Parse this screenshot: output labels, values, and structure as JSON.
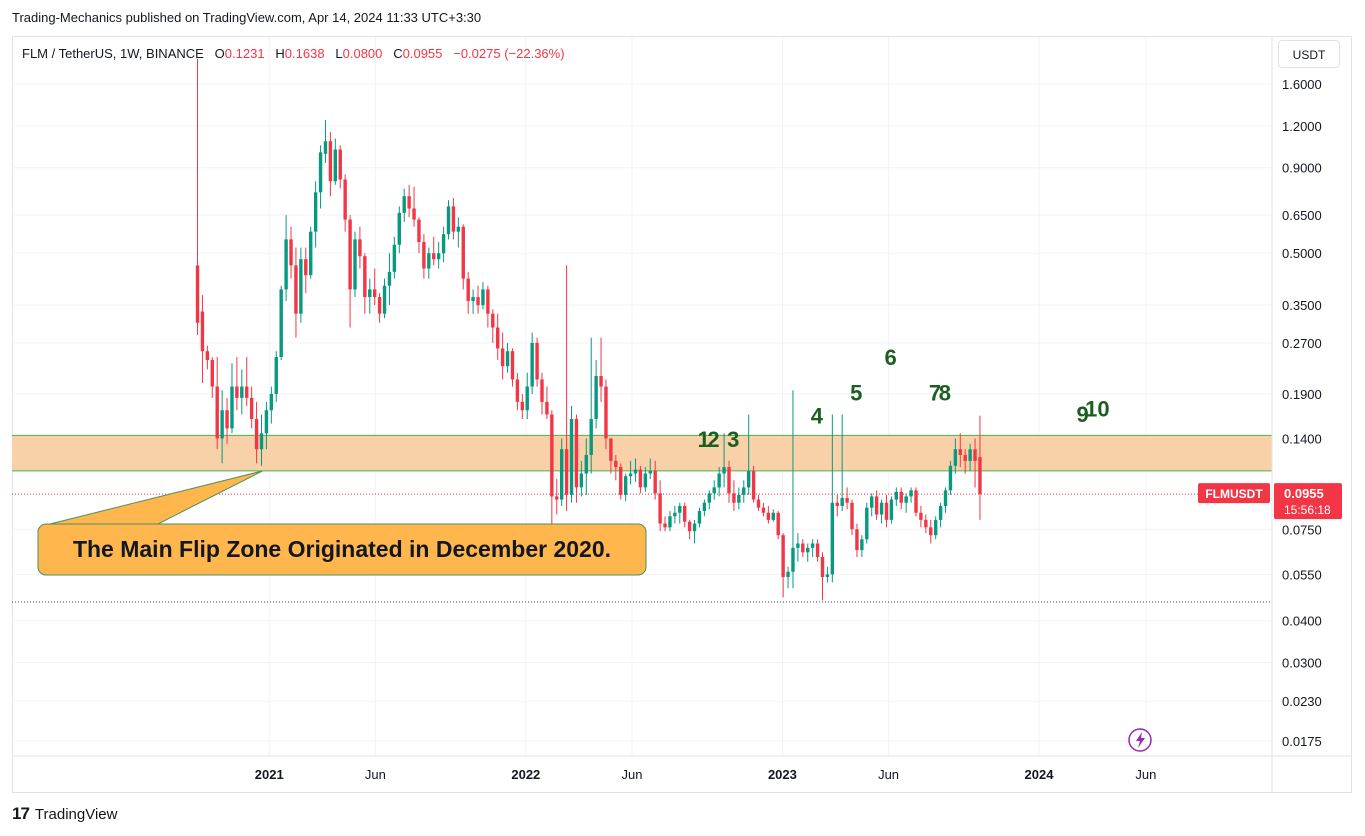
{
  "publication": "Trading-Mechanics published on TradingView.com, Apr 14, 2024 11:33 UTC+3:30",
  "legend": {
    "symbol": "FLM / TetherUS, 1W, BINANCE",
    "o_label": "O",
    "o": "0.1231",
    "h_label": "H",
    "h": "0.1638",
    "l_label": "L",
    "l": "0.0800",
    "c_label": "C",
    "c": "0.0955",
    "change": "−0.0275 (−22.36%)"
  },
  "currency_button": "USDT",
  "footer": {
    "logo": "17",
    "brand": "TradingView"
  },
  "colors": {
    "up": "#089981",
    "down": "#f23645",
    "zone_fill": "#f8cfa3",
    "zone_border": "#4caf50",
    "callout_fill": "#ffb74d",
    "callout_border": "#4c8f62",
    "count_label": "#1b5e20",
    "price_tag": "#f23645"
  },
  "chart_data": {
    "type": "candlestick",
    "scale": "log",
    "symbol": "FLMUSDT",
    "interval": "1W",
    "exchange": "BINANCE",
    "ylim": [
      0.0155,
      2.0
    ],
    "y_ticks": [
      "1.6000",
      "1.2000",
      "0.9000",
      "0.6500",
      "0.5000",
      "0.3500",
      "0.2700",
      "0.1900",
      "0.1400",
      "0.0750",
      "0.0550",
      "0.0400",
      "0.0300",
      "0.0230",
      "0.0175"
    ],
    "x_ticks": [
      {
        "label": "2021",
        "date": "2021-01-01",
        "bold": true
      },
      {
        "label": "Jun",
        "date": "2021-06-01",
        "bold": false
      },
      {
        "label": "2022",
        "date": "2022-01-01",
        "bold": true
      },
      {
        "label": "Jun",
        "date": "2022-06-01",
        "bold": false
      },
      {
        "label": "2023",
        "date": "2023-01-01",
        "bold": true
      },
      {
        "label": "Jun",
        "date": "2023-06-01",
        "bold": false
      },
      {
        "label": "2024",
        "date": "2024-01-01",
        "bold": true
      },
      {
        "label": "Jun",
        "date": "2024-06-01",
        "bold": false
      }
    ],
    "x_range": [
      "2020-08-10",
      "2024-10-20"
    ],
    "first_candle": "2020-09-21",
    "candle_interval_days": 7,
    "last_price": {
      "label": "FLMUSDT",
      "value": "0.0955",
      "countdown": "15:56:18"
    },
    "hlines": [
      0.0955,
      0.0455
    ],
    "zone": {
      "low": 0.112,
      "high": 0.143
    },
    "callout": {
      "text": "The Main Flip Zone Originated in December 2020.",
      "date": "2020-12-14",
      "price": 0.112
    },
    "counts": [
      {
        "label": "1",
        "date": "2022-09-11",
        "price": 0.132
      },
      {
        "label": "2",
        "date": "2022-09-25",
        "price": 0.132
      },
      {
        "label": "3",
        "date": "2022-10-23",
        "price": 0.132
      },
      {
        "label": "4",
        "date": "2023-02-19",
        "price": 0.155
      },
      {
        "label": "5",
        "date": "2023-04-16",
        "price": 0.182
      },
      {
        "label": "6",
        "date": "2023-06-04",
        "price": 0.232
      },
      {
        "label": "7",
        "date": "2023-08-06",
        "price": 0.182
      },
      {
        "label": "8",
        "date": "2023-08-20",
        "price": 0.182
      },
      {
        "label": "9",
        "date": "2024-03-03",
        "price": 0.157
      },
      {
        "label": "10",
        "date": "2024-03-24",
        "price": 0.163
      }
    ],
    "candles": [
      [
        0.46,
        1.9,
        0.285,
        0.31
      ],
      [
        0.335,
        0.375,
        0.205,
        0.255
      ],
      [
        0.255,
        0.265,
        0.225,
        0.24
      ],
      [
        0.24,
        0.245,
        0.185,
        0.2
      ],
      [
        0.2,
        0.245,
        0.13,
        0.14
      ],
      [
        0.14,
        0.195,
        0.118,
        0.17
      ],
      [
        0.17,
        0.185,
        0.135,
        0.15
      ],
      [
        0.15,
        0.235,
        0.145,
        0.2
      ],
      [
        0.2,
        0.245,
        0.17,
        0.185
      ],
      [
        0.185,
        0.225,
        0.165,
        0.2
      ],
      [
        0.2,
        0.245,
        0.175,
        0.185
      ],
      [
        0.185,
        0.2,
        0.15,
        0.16
      ],
      [
        0.16,
        0.18,
        0.118,
        0.13
      ],
      [
        0.13,
        0.165,
        0.116,
        0.145
      ],
      [
        0.145,
        0.18,
        0.13,
        0.17
      ],
      [
        0.17,
        0.2,
        0.155,
        0.19
      ],
      [
        0.19,
        0.255,
        0.18,
        0.245
      ],
      [
        0.245,
        0.4,
        0.24,
        0.39
      ],
      [
        0.39,
        0.65,
        0.36,
        0.55
      ],
      [
        0.55,
        0.6,
        0.42,
        0.46
      ],
      [
        0.46,
        0.52,
        0.28,
        0.33
      ],
      [
        0.33,
        0.52,
        0.31,
        0.48
      ],
      [
        0.48,
        0.52,
        0.38,
        0.43
      ],
      [
        0.43,
        0.6,
        0.42,
        0.58
      ],
      [
        0.58,
        0.82,
        0.52,
        0.76
      ],
      [
        0.76,
        1.05,
        0.68,
        1.0
      ],
      [
        0.99,
        1.25,
        0.93,
        1.08
      ],
      [
        1.08,
        1.15,
        0.74,
        0.82
      ],
      [
        0.82,
        1.1,
        0.8,
        1.02
      ],
      [
        1.02,
        1.05,
        0.78,
        0.83
      ],
      [
        0.83,
        0.86,
        0.58,
        0.63
      ],
      [
        0.63,
        0.65,
        0.3,
        0.39
      ],
      [
        0.39,
        0.58,
        0.37,
        0.55
      ],
      [
        0.55,
        0.6,
        0.45,
        0.49
      ],
      [
        0.49,
        0.5,
        0.33,
        0.37
      ],
      [
        0.37,
        0.42,
        0.33,
        0.39
      ],
      [
        0.39,
        0.45,
        0.35,
        0.37
      ],
      [
        0.37,
        0.38,
        0.31,
        0.33
      ],
      [
        0.33,
        0.42,
        0.32,
        0.4
      ],
      [
        0.4,
        0.5,
        0.35,
        0.44
      ],
      [
        0.44,
        0.56,
        0.42,
        0.53
      ],
      [
        0.53,
        0.69,
        0.5,
        0.66
      ],
      [
        0.66,
        0.78,
        0.62,
        0.74
      ],
      [
        0.74,
        0.8,
        0.64,
        0.68
      ],
      [
        0.68,
        0.79,
        0.6,
        0.63
      ],
      [
        0.63,
        0.64,
        0.5,
        0.54
      ],
      [
        0.54,
        0.57,
        0.42,
        0.45
      ],
      [
        0.45,
        0.52,
        0.42,
        0.5
      ],
      [
        0.5,
        0.56,
        0.46,
        0.48
      ],
      [
        0.48,
        0.54,
        0.45,
        0.5
      ],
      [
        0.5,
        0.6,
        0.47,
        0.57
      ],
      [
        0.57,
        0.72,
        0.55,
        0.69
      ],
      [
        0.69,
        0.73,
        0.55,
        0.58
      ],
      [
        0.58,
        0.64,
        0.52,
        0.6
      ],
      [
        0.6,
        0.61,
        0.39,
        0.42
      ],
      [
        0.42,
        0.44,
        0.33,
        0.36
      ],
      [
        0.36,
        0.39,
        0.33,
        0.37
      ],
      [
        0.37,
        0.4,
        0.33,
        0.35
      ],
      [
        0.35,
        0.41,
        0.34,
        0.39
      ],
      [
        0.39,
        0.4,
        0.3,
        0.33
      ],
      [
        0.33,
        0.34,
        0.27,
        0.3
      ],
      [
        0.3,
        0.33,
        0.24,
        0.26
      ],
      [
        0.26,
        0.29,
        0.21,
        0.23
      ],
      [
        0.23,
        0.27,
        0.22,
        0.255
      ],
      [
        0.255,
        0.26,
        0.2,
        0.21
      ],
      [
        0.21,
        0.22,
        0.17,
        0.18
      ],
      [
        0.18,
        0.19,
        0.16,
        0.17
      ],
      [
        0.17,
        0.22,
        0.16,
        0.2
      ],
      [
        0.2,
        0.29,
        0.19,
        0.27
      ],
      [
        0.27,
        0.28,
        0.2,
        0.21
      ],
      [
        0.21,
        0.22,
        0.165,
        0.18
      ],
      [
        0.18,
        0.2,
        0.16,
        0.165
      ],
      [
        0.165,
        0.17,
        0.078,
        0.094
      ],
      [
        0.094,
        0.106,
        0.083,
        0.092
      ],
      [
        0.092,
        0.14,
        0.088,
        0.13
      ],
      [
        0.13,
        0.46,
        0.085,
        0.095
      ],
      [
        0.095,
        0.175,
        0.09,
        0.16
      ],
      [
        0.16,
        0.165,
        0.09,
        0.1
      ],
      [
        0.1,
        0.12,
        0.094,
        0.11
      ],
      [
        0.11,
        0.14,
        0.095,
        0.125
      ],
      [
        0.125,
        0.28,
        0.11,
        0.16
      ],
      [
        0.16,
        0.24,
        0.15,
        0.215
      ],
      [
        0.215,
        0.28,
        0.18,
        0.2
      ],
      [
        0.2,
        0.21,
        0.13,
        0.14
      ],
      [
        0.14,
        0.14,
        0.11,
        0.12
      ],
      [
        0.12,
        0.125,
        0.105,
        0.115
      ],
      [
        0.115,
        0.118,
        0.092,
        0.095
      ],
      [
        0.095,
        0.11,
        0.091,
        0.108
      ],
      [
        0.108,
        0.12,
        0.102,
        0.11
      ],
      [
        0.11,
        0.122,
        0.104,
        0.113
      ],
      [
        0.113,
        0.116,
        0.096,
        0.1
      ],
      [
        0.1,
        0.115,
        0.097,
        0.11
      ],
      [
        0.11,
        0.122,
        0.106,
        0.112
      ],
      [
        0.112,
        0.12,
        0.092,
        0.096
      ],
      [
        0.096,
        0.105,
        0.074,
        0.078
      ],
      [
        0.078,
        0.082,
        0.074,
        0.076
      ],
      [
        0.076,
        0.085,
        0.074,
        0.082
      ],
      [
        0.082,
        0.088,
        0.078,
        0.084
      ],
      [
        0.084,
        0.09,
        0.078,
        0.088
      ],
      [
        0.088,
        0.09,
        0.076,
        0.079
      ],
      [
        0.079,
        0.08,
        0.07,
        0.074
      ],
      [
        0.074,
        0.08,
        0.068,
        0.078
      ],
      [
        0.078,
        0.087,
        0.076,
        0.085
      ],
      [
        0.085,
        0.092,
        0.082,
        0.09
      ],
      [
        0.09,
        0.098,
        0.086,
        0.096
      ],
      [
        0.096,
        0.105,
        0.092,
        0.1
      ],
      [
        0.1,
        0.115,
        0.094,
        0.11
      ],
      [
        0.11,
        0.145,
        0.1,
        0.115
      ],
      [
        0.115,
        0.12,
        0.09,
        0.096
      ],
      [
        0.096,
        0.105,
        0.085,
        0.09
      ],
      [
        0.09,
        0.1,
        0.086,
        0.095
      ],
      [
        0.095,
        0.105,
        0.09,
        0.1
      ],
      [
        0.1,
        0.165,
        0.095,
        0.112
      ],
      [
        0.112,
        0.116,
        0.09,
        0.092
      ],
      [
        0.092,
        0.095,
        0.085,
        0.087
      ],
      [
        0.087,
        0.09,
        0.082,
        0.084
      ],
      [
        0.084,
        0.088,
        0.078,
        0.08
      ],
      [
        0.08,
        0.086,
        0.079,
        0.084
      ],
      [
        0.084,
        0.085,
        0.07,
        0.072
      ],
      [
        0.072,
        0.073,
        0.047,
        0.054
      ],
      [
        0.054,
        0.058,
        0.05,
        0.056
      ],
      [
        0.056,
        0.195,
        0.05,
        0.066
      ],
      [
        0.066,
        0.073,
        0.06,
        0.068
      ],
      [
        0.068,
        0.07,
        0.062,
        0.064
      ],
      [
        0.064,
        0.068,
        0.06,
        0.066
      ],
      [
        0.066,
        0.07,
        0.062,
        0.068
      ],
      [
        0.068,
        0.07,
        0.06,
        0.062
      ],
      [
        0.062,
        0.064,
        0.046,
        0.054
      ],
      [
        0.054,
        0.058,
        0.052,
        0.055
      ],
      [
        0.055,
        0.165,
        0.052,
        0.09
      ],
      [
        0.09,
        0.095,
        0.082,
        0.088
      ],
      [
        0.088,
        0.165,
        0.085,
        0.093
      ],
      [
        0.093,
        0.1,
        0.086,
        0.09
      ],
      [
        0.09,
        0.092,
        0.072,
        0.075
      ],
      [
        0.075,
        0.078,
        0.062,
        0.065
      ],
      [
        0.065,
        0.072,
        0.062,
        0.07
      ],
      [
        0.07,
        0.09,
        0.068,
        0.087
      ],
      [
        0.087,
        0.096,
        0.082,
        0.094
      ],
      [
        0.094,
        0.098,
        0.08,
        0.083
      ],
      [
        0.083,
        0.092,
        0.078,
        0.09
      ],
      [
        0.09,
        0.095,
        0.076,
        0.08
      ],
      [
        0.08,
        0.094,
        0.078,
        0.092
      ],
      [
        0.092,
        0.1,
        0.088,
        0.097
      ],
      [
        0.097,
        0.1,
        0.086,
        0.09
      ],
      [
        0.09,
        0.096,
        0.084,
        0.094
      ],
      [
        0.094,
        0.1,
        0.09,
        0.098
      ],
      [
        0.098,
        0.1,
        0.082,
        0.084
      ],
      [
        0.084,
        0.088,
        0.076,
        0.08
      ],
      [
        0.08,
        0.083,
        0.073,
        0.076
      ],
      [
        0.076,
        0.08,
        0.068,
        0.072
      ],
      [
        0.072,
        0.082,
        0.07,
        0.08
      ],
      [
        0.08,
        0.09,
        0.076,
        0.088
      ],
      [
        0.088,
        0.1,
        0.084,
        0.098
      ],
      [
        0.098,
        0.12,
        0.095,
        0.116
      ],
      [
        0.116,
        0.14,
        0.11,
        0.13
      ],
      [
        0.13,
        0.145,
        0.115,
        0.125
      ],
      [
        0.125,
        0.13,
        0.11,
        0.12
      ],
      [
        0.12,
        0.135,
        0.112,
        0.13
      ],
      [
        0.13,
        0.14,
        0.1,
        0.12
      ],
      [
        0.1231,
        0.1638,
        0.08,
        0.0955
      ]
    ]
  }
}
